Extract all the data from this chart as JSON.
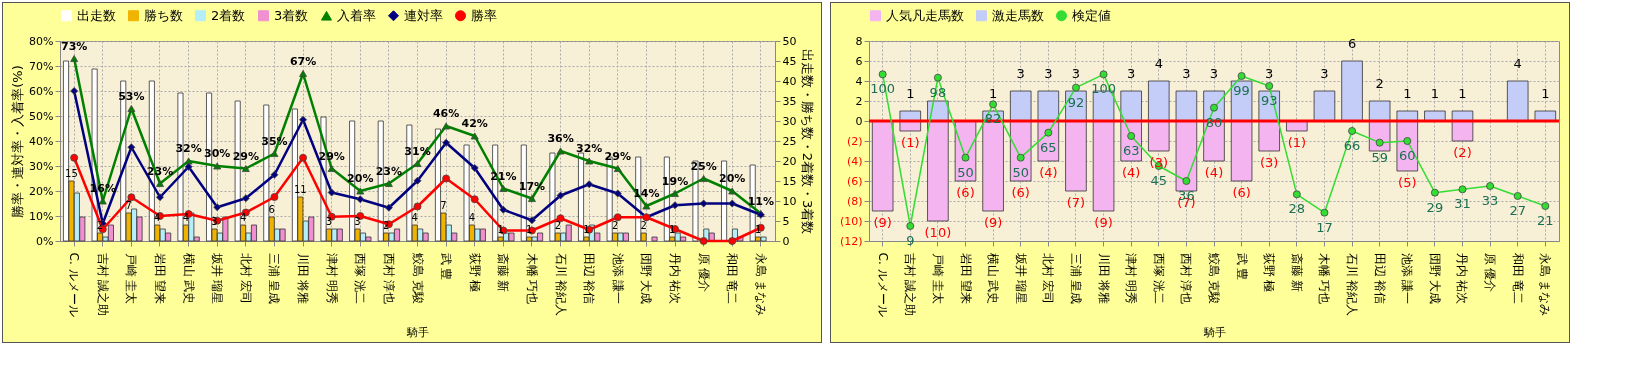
{
  "chart_data": [
    {
      "type": "bar",
      "xlabel": "騎手",
      "ylabel": "勝率・連対率・入着率(%)",
      "y2label": "出走数・勝ち数・2着数・3着数",
      "categories": [
        "C. ルメール",
        "吉村 誠之助",
        "戸崎 圭太",
        "岩田 望来",
        "横山 武史",
        "坂井 瑠星",
        "北村 宏司",
        "三浦 皇成",
        "川田 将雅",
        "津村 明秀",
        "西塚 洸二",
        "西村 淳也",
        "鮫島 克駿",
        "武 豊",
        "荻野 極",
        "斎藤 新",
        "木幡 巧也",
        "石川 裕紀人",
        "田辺 裕信",
        "池添 謙一",
        "団野 大成",
        "丹内 祐次",
        "原 優介",
        "和田 竜二",
        "永島 まなみ"
      ],
      "ylim": [
        0,
        80
      ],
      "yticks": [
        {
          "value": 0,
          "label": "0%"
        },
        {
          "value": 10,
          "label": "10%"
        },
        {
          "value": 20,
          "label": "20%"
        },
        {
          "value": 30,
          "label": "30%"
        },
        {
          "value": 40,
          "label": "40%"
        },
        {
          "value": 50,
          "label": "50%"
        },
        {
          "value": 60,
          "label": "60%"
        },
        {
          "value": 70,
          "label": "70%"
        },
        {
          "value": 80,
          "label": "80%"
        }
      ],
      "y2lim": [
        0,
        50
      ],
      "y2ticks": [
        0,
        5,
        10,
        15,
        20,
        25,
        30,
        35,
        40,
        45,
        50
      ],
      "grid": true,
      "legend": "top",
      "series": [
        {
          "name": "出走数",
          "type": "bar",
          "axis": "y2",
          "color": "#ffffff",
          "values": [
            45,
            43,
            40,
            40,
            37,
            37,
            35,
            34,
            33,
            31,
            30,
            30,
            29,
            28,
            24,
            24,
            24,
            22,
            22,
            21,
            21,
            21,
            20,
            20,
            19
          ]
        },
        {
          "name": "勝ち数",
          "type": "bar",
          "axis": "y2",
          "color": "#f0b400",
          "values": [
            15,
            2,
            7,
            4,
            4,
            3,
            4,
            6,
            11,
            3,
            3,
            2,
            4,
            7,
            4,
            1,
            1,
            2,
            1,
            2,
            2,
            1,
            0,
            0,
            1
          ],
          "value_labels": [
            "15",
            "2",
            "7",
            "4",
            "4",
            "3",
            "4",
            "6",
            "11",
            "3",
            "3",
            "2",
            "4",
            "7",
            "4",
            "1",
            "1",
            "2",
            "1",
            "2",
            "2",
            "1",
            null,
            null,
            "1"
          ]
        },
        {
          "name": "2着数",
          "type": "bar",
          "axis": "y2",
          "color": "#b4eef8",
          "values": [
            12,
            1,
            8,
            3,
            7,
            2,
            2,
            3,
            5,
            3,
            2,
            2,
            3,
            4,
            3,
            2,
            1,
            2,
            4,
            2,
            0,
            2,
            3,
            3,
            1
          ]
        },
        {
          "name": "3着数",
          "type": "bar",
          "axis": "y2",
          "color": "#f090d0",
          "values": [
            6,
            4,
            6,
            2,
            1,
            6,
            4,
            3,
            6,
            3,
            1,
            3,
            2,
            2,
            3,
            2,
            2,
            4,
            2,
            2,
            1,
            1,
            2,
            1,
            0
          ]
        },
        {
          "name": "入着率",
          "type": "line",
          "marker": "triangle",
          "color": "#008000",
          "values": [
            73,
            16,
            53,
            23,
            32,
            30,
            29,
            35,
            67,
            29,
            20,
            23,
            31,
            46,
            42,
            21,
            17,
            36,
            32,
            29,
            14,
            19,
            25,
            20,
            11
          ],
          "value_labels": [
            "73%",
            "16%",
            "53%",
            "23%",
            "32%",
            "30%",
            "29%",
            "35%",
            "67%",
            "29%",
            "20%",
            "23%",
            "31%",
            "46%",
            "42%",
            "21%",
            "17%",
            "36%",
            "32%",
            "29%",
            "14%",
            "19%",
            "25%",
            "20%",
            "11%"
          ]
        },
        {
          "name": "連対率",
          "type": "line",
          "marker": "diamond",
          "color": "#000080",
          "values": [
            60.0,
            7.0,
            37.5,
            17.5,
            29.7,
            13.5,
            17.1,
            26.5,
            48.5,
            19.4,
            16.7,
            13.3,
            24.1,
            39.3,
            29.2,
            12.5,
            8.3,
            18.2,
            22.7,
            19.0,
            9.5,
            14.3,
            15.0,
            15.0,
            10.5
          ]
        },
        {
          "name": "勝率",
          "type": "line",
          "marker": "circle",
          "color": "#ff0000",
          "values": [
            33.3,
            4.7,
            17.5,
            10.0,
            10.8,
            8.1,
            11.4,
            17.6,
            33.3,
            9.7,
            10.0,
            6.7,
            13.8,
            25.0,
            16.7,
            4.2,
            4.2,
            9.1,
            4.5,
            9.5,
            9.5,
            4.8,
            0,
            0,
            5.3
          ]
        }
      ]
    },
    {
      "type": "bar",
      "xlabel": "騎手",
      "stacked": true,
      "categories": [
        "C. ルメール",
        "吉村 誠之助",
        "戸崎 圭太",
        "岩田 望来",
        "横山 武史",
        "坂井 瑠星",
        "北村 宏司",
        "三浦 皇成",
        "川田 将雅",
        "津村 明秀",
        "西塚 洸二",
        "西村 淳也",
        "鮫島 克駿",
        "武 豊",
        "荻野 極",
        "斎藤 新",
        "木幡 巧也",
        "石川 裕紀人",
        "田辺 裕信",
        "池添 謙一",
        "団野 大成",
        "丹内 祐次",
        "原 優介",
        "和田 竜二",
        "永島 まなみ"
      ],
      "ylim": [
        -12,
        8
      ],
      "yticks": [
        8,
        6,
        4,
        2,
        0,
        {
          "value": -2,
          "label": "(2)"
        },
        {
          "value": -4,
          "label": "(4)"
        },
        {
          "value": -6,
          "label": "(6)"
        },
        {
          "value": -8,
          "label": "(8)"
        },
        {
          "value": -10,
          "label": "(10)"
        },
        {
          "value": -12,
          "label": "(12)"
        }
      ],
      "y2lim": [
        0,
        120
      ],
      "grid": true,
      "legend": "top",
      "ref_lines": [
        {
          "axis": "y",
          "value": 0,
          "color": "#ff0000"
        }
      ],
      "series": [
        {
          "name": "人気凡走馬数",
          "type": "bar",
          "color": "#f4b4f0",
          "values": [
            -9,
            -1,
            -10,
            -6,
            -9,
            -6,
            -4,
            -7,
            -9,
            -4,
            -3,
            -7,
            -4,
            -6,
            -3,
            -1,
            0,
            0,
            -3,
            -5,
            0,
            -2,
            0,
            0,
            0
          ],
          "value_labels": [
            "(9)",
            "(1)",
            "(10)",
            "(6)",
            "(9)",
            "(6)",
            "(4)",
            "(7)",
            "(9)",
            "(4)",
            "(3)",
            "(7)",
            "(4)",
            "(6)",
            "(3)",
            "(1)",
            null,
            null,
            null,
            "(5)",
            null,
            "(2)",
            null,
            null,
            null
          ]
        },
        {
          "name": "激走馬数",
          "type": "bar",
          "color": "#c4ccf8",
          "values": [
            0,
            1,
            2,
            0,
            1,
            3,
            3,
            3,
            3,
            3,
            4,
            3,
            3,
            4,
            3,
            0,
            3,
            6,
            2,
            1,
            1,
            1,
            0,
            4,
            1
          ],
          "value_labels": [
            null,
            "1",
            null,
            null,
            "1",
            "3",
            "3",
            "3",
            null,
            "3",
            "4",
            "3",
            "3",
            null,
            "3",
            null,
            "3",
            "6",
            "2",
            "1",
            "1",
            "1",
            null,
            "4",
            "1"
          ]
        },
        {
          "name": "検定値",
          "type": "line",
          "axis": "y2",
          "marker": "circle",
          "color": "#33dd33",
          "values": [
            100,
            9,
            98,
            50,
            82,
            50,
            65,
            92,
            100,
            63,
            45,
            36,
            80,
            99,
            93,
            28,
            17,
            66,
            59,
            60,
            29,
            31,
            33,
            27,
            21
          ],
          "value_labels": [
            "100",
            "9",
            "98",
            "50",
            "82",
            "50",
            "65",
            "92",
            "100",
            "63",
            "45",
            "36",
            "80",
            "99",
            "93",
            "28",
            "17",
            "66",
            "59",
            "60",
            "29",
            "31",
            "33",
            "27",
            "21"
          ]
        }
      ]
    }
  ]
}
